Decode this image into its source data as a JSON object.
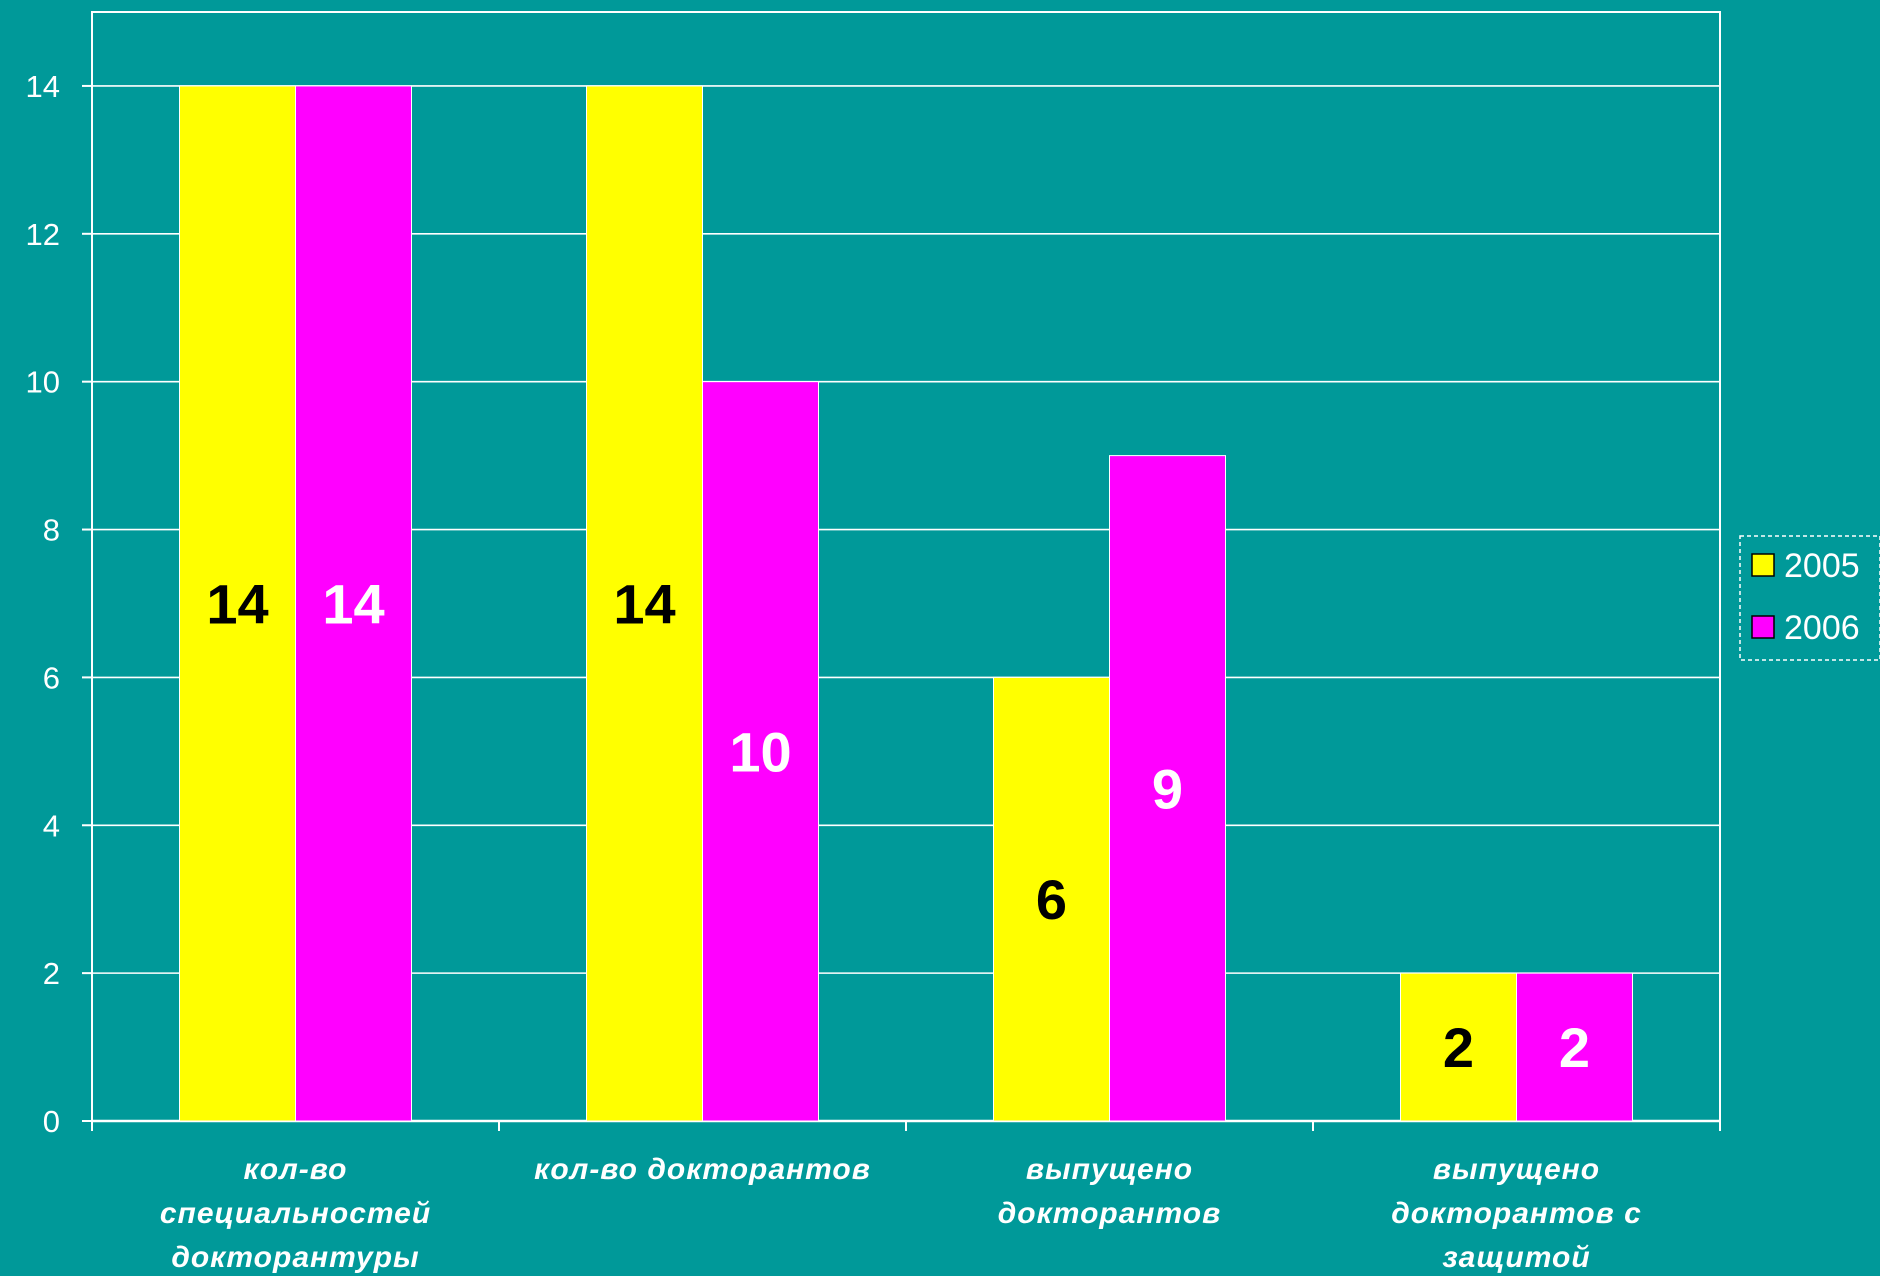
{
  "chart_data": {
    "type": "bar",
    "categories": [
      [
        "кол-во",
        "специальностей",
        "докторантуры"
      ],
      [
        "кол-во докторантов"
      ],
      [
        "выпущено",
        "докторантов"
      ],
      [
        "выпущено",
        "докторантов с",
        "защитой"
      ]
    ],
    "series": [
      {
        "name": "2005",
        "values": [
          14,
          14,
          6,
          2
        ],
        "color": "#ffff00",
        "label_color": "#000000"
      },
      {
        "name": "2006",
        "values": [
          14,
          10,
          9,
          2
        ],
        "color": "#ff00ff",
        "label_color": "#ffffff"
      }
    ],
    "data_labels": [
      [
        "14",
        "14",
        "6",
        "2"
      ],
      [
        "14",
        "10",
        "9",
        "2"
      ]
    ],
    "ylim": [
      0,
      15
    ],
    "yticks": [
      0,
      2,
      4,
      6,
      8,
      10,
      12,
      14
    ],
    "grid": true,
    "legend_position": "right",
    "colors": {
      "background": "#009999",
      "gridline": "#ffffff"
    }
  }
}
